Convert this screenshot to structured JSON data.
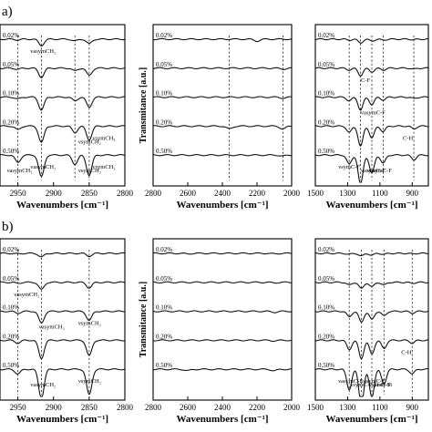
{
  "figure": {
    "row_labels": [
      "a)",
      "b)"
    ],
    "xlabel": "Wavenumbers [cm⁻¹]",
    "ylabel": "Transmitance [a.u.]",
    "concentrations": [
      "0.02%",
      "0.05%",
      "0.10%",
      "0.20%",
      "0.50%"
    ]
  },
  "chart_data": [
    {
      "id": "a-left",
      "row": "a)",
      "type": "line",
      "xlim": [
        2975,
        2800
      ],
      "xticks": [
        2950,
        2900,
        2850,
        2800
      ],
      "ylabel_shown": false,
      "series_names": [
        "0.02%",
        "0.05%",
        "0.10%",
        "0.20%",
        "0.50%"
      ],
      "peaks": [
        {
          "x": 2950,
          "depth": [
            0.8,
            1.2,
            2,
            4,
            8
          ]
        },
        {
          "x": 2917,
          "depth": [
            7,
            10,
            14,
            18,
            24
          ]
        },
        {
          "x": 2870,
          "depth": [
            2,
            3,
            4,
            7,
            10
          ]
        },
        {
          "x": 2850,
          "depth": [
            5,
            8,
            11,
            15,
            22
          ]
        }
      ],
      "annotations": [
        {
          "text": "νasymCH₂",
          "x": 2917,
          "series": 0
        },
        {
          "text": "νsymCH₂",
          "x": 2850,
          "series": 3
        },
        {
          "text": "νsymCH₃",
          "x": 2830,
          "series": 3
        },
        {
          "text": "νasymCH₃",
          "x": 2950,
          "series": 4
        },
        {
          "text": "νasymCH₂",
          "x": 2917,
          "series": 4
        },
        {
          "text": "νsymCH₂",
          "x": 2850,
          "series": 4
        },
        {
          "text": "νsymCH₃",
          "x": 2830,
          "series": 4
        }
      ]
    },
    {
      "id": "a-mid",
      "row": "a)",
      "type": "line",
      "xlim": [
        2800,
        2000
      ],
      "xticks": [
        2800,
        2600,
        2400,
        2200,
        2000
      ],
      "ylabel_shown": true,
      "series_names": [
        "0.02%",
        "0.05%",
        "0.10%",
        "0.20%",
        "0.50%"
      ],
      "peaks": [
        {
          "x": 2360,
          "depth": [
            0,
            0,
            0,
            3,
            0
          ]
        },
        {
          "x": 2200,
          "depth": [
            2,
            0,
            0,
            0,
            0
          ]
        },
        {
          "x": 2050,
          "depth": [
            0,
            1,
            1,
            3,
            1
          ]
        }
      ],
      "annotations": []
    },
    {
      "id": "a-right",
      "row": "a)",
      "type": "line",
      "xlim": [
        1500,
        800
      ],
      "xticks": [
        1500,
        1300,
        1100,
        900
      ],
      "ylabel_shown": false,
      "series_names": [
        "0.02%",
        "0.05%",
        "0.10%",
        "0.20%",
        "0.50%"
      ],
      "peaks": [
        {
          "x": 1290,
          "depth": [
            1,
            2,
            4,
            7,
            10
          ]
        },
        {
          "x": 1220,
          "depth": [
            4,
            8,
            14,
            22,
            32
          ]
        },
        {
          "x": 1150,
          "depth": [
            2,
            4,
            8,
            13,
            20
          ]
        },
        {
          "x": 1080,
          "depth": [
            1,
            2,
            3,
            6,
            9
          ]
        },
        {
          "x": 890,
          "depth": [
            0.5,
            1,
            1.5,
            3,
            5
          ]
        }
      ],
      "annotations": [
        {
          "text": "C-F",
          "x": 1150,
          "series": 1
        },
        {
          "text": "νasymC-F",
          "x": 1150,
          "series": 2
        },
        {
          "text": "C-H",
          "x": 890,
          "series": 3
        },
        {
          "text": "νasymC-F",
          "x": 1150,
          "series": 4
        },
        {
          "text": "νsymC-F",
          "x": 1290,
          "series": 4
        },
        {
          "text": "νasymC-F",
          "x": 1110,
          "series": 4
        }
      ]
    },
    {
      "id": "b-left",
      "row": "b)",
      "type": "line",
      "xlim": [
        2975,
        2800
      ],
      "xticks": [
        2950,
        2900,
        2850,
        2800
      ],
      "ylabel_shown": false,
      "series_names": [
        "0.02%",
        "0.05%",
        "0.10%",
        "0.20%",
        "0.50%"
      ],
      "peaks": [
        {
          "x": 2950,
          "depth": [
            0.5,
            1,
            2,
            3,
            5
          ]
        },
        {
          "x": 2917,
          "depth": [
            4,
            8,
            13,
            20,
            32
          ]
        },
        {
          "x": 2850,
          "depth": [
            3,
            6,
            10,
            17,
            28
          ]
        }
      ],
      "annotations": [
        {
          "text": "νasymCH₂",
          "x": 2940,
          "series": 1
        },
        {
          "text": "νasymCH₂",
          "x": 2905,
          "series": 2
        },
        {
          "text": "νsymCH₂",
          "x": 2850,
          "series": 2
        },
        {
          "text": "νasymCH₂",
          "x": 2917,
          "series": 4
        },
        {
          "text": "νsymCH₂",
          "x": 2850,
          "series": 4
        }
      ]
    },
    {
      "id": "b-mid",
      "row": "b)",
      "type": "line",
      "xlim": [
        2800,
        2000
      ],
      "xticks": [
        2800,
        2600,
        2400,
        2200,
        2000
      ],
      "ylabel_shown": true,
      "series_names": [
        "0.02%",
        "0.05%",
        "0.10%",
        "0.20%",
        "0.50%"
      ],
      "peaks": [
        {
          "x": 2600,
          "depth": [
            0.5,
            0,
            0,
            0,
            1.5
          ]
        },
        {
          "x": 2100,
          "depth": [
            0.5,
            0.5,
            1,
            0.5,
            1.5
          ]
        }
      ],
      "annotations": []
    },
    {
      "id": "b-right",
      "row": "b)",
      "type": "line",
      "xlim": [
        1500,
        800
      ],
      "xticks": [
        1500,
        1300,
        1100,
        900
      ],
      "ylabel_shown": false,
      "series_names": [
        "0.02%",
        "0.05%",
        "0.10%",
        "0.20%",
        "0.50%"
      ],
      "peaks": [
        {
          "x": 1290,
          "depth": [
            1,
            3,
            6,
            10,
            22
          ]
        },
        {
          "x": 1215,
          "depth": [
            3,
            7,
            12,
            20,
            40
          ]
        },
        {
          "x": 1150,
          "depth": [
            2,
            5,
            9,
            15,
            30
          ]
        },
        {
          "x": 1075,
          "depth": [
            1,
            3,
            5,
            9,
            16
          ]
        },
        {
          "x": 900,
          "depth": [
            0.5,
            1,
            2,
            3,
            5
          ]
        }
      ],
      "annotations": [
        {
          "text": "C-H",
          "x": 900,
          "series": 3
        },
        {
          "text": "Si-O-Si",
          "x": 1070,
          "series": 4
        },
        {
          "text": "νasymC-F",
          "x": 1290,
          "series": 4
        },
        {
          "text": "νsymC-F",
          "x": 1215,
          "series": 4
        },
        {
          "text": "νasymC-F",
          "x": 1150,
          "series": 4
        },
        {
          "text": "νsymC-F",
          "x": 1100,
          "series": 4
        }
      ]
    }
  ]
}
